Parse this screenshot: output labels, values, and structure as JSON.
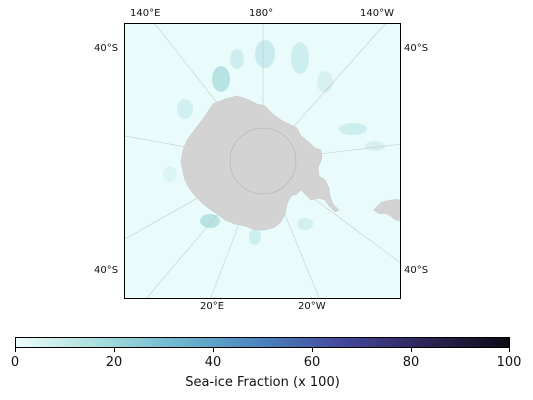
{
  "map": {
    "projection": "south-polar-stereographic",
    "background_color": "#e9fbfb",
    "land_color": "#d3d3d3",
    "labels": {
      "top": [
        "140°E",
        "180°",
        "140°W"
      ],
      "left": [
        "40°S",
        "40°S"
      ],
      "right": [
        "40°S",
        "40°S"
      ],
      "bottom": [
        "20°E",
        "20°W"
      ]
    }
  },
  "colorbar": {
    "min": 0,
    "max": 100,
    "ticks": [
      "0",
      "20",
      "40",
      "60",
      "80",
      "100"
    ],
    "label": "Sea-ice Fraction (x 100)",
    "colors": [
      "#eefcfb",
      "#a7dfdc",
      "#6bb5cf",
      "#4a82bd",
      "#43469a",
      "#2d2456",
      "#0b0b14"
    ]
  }
}
